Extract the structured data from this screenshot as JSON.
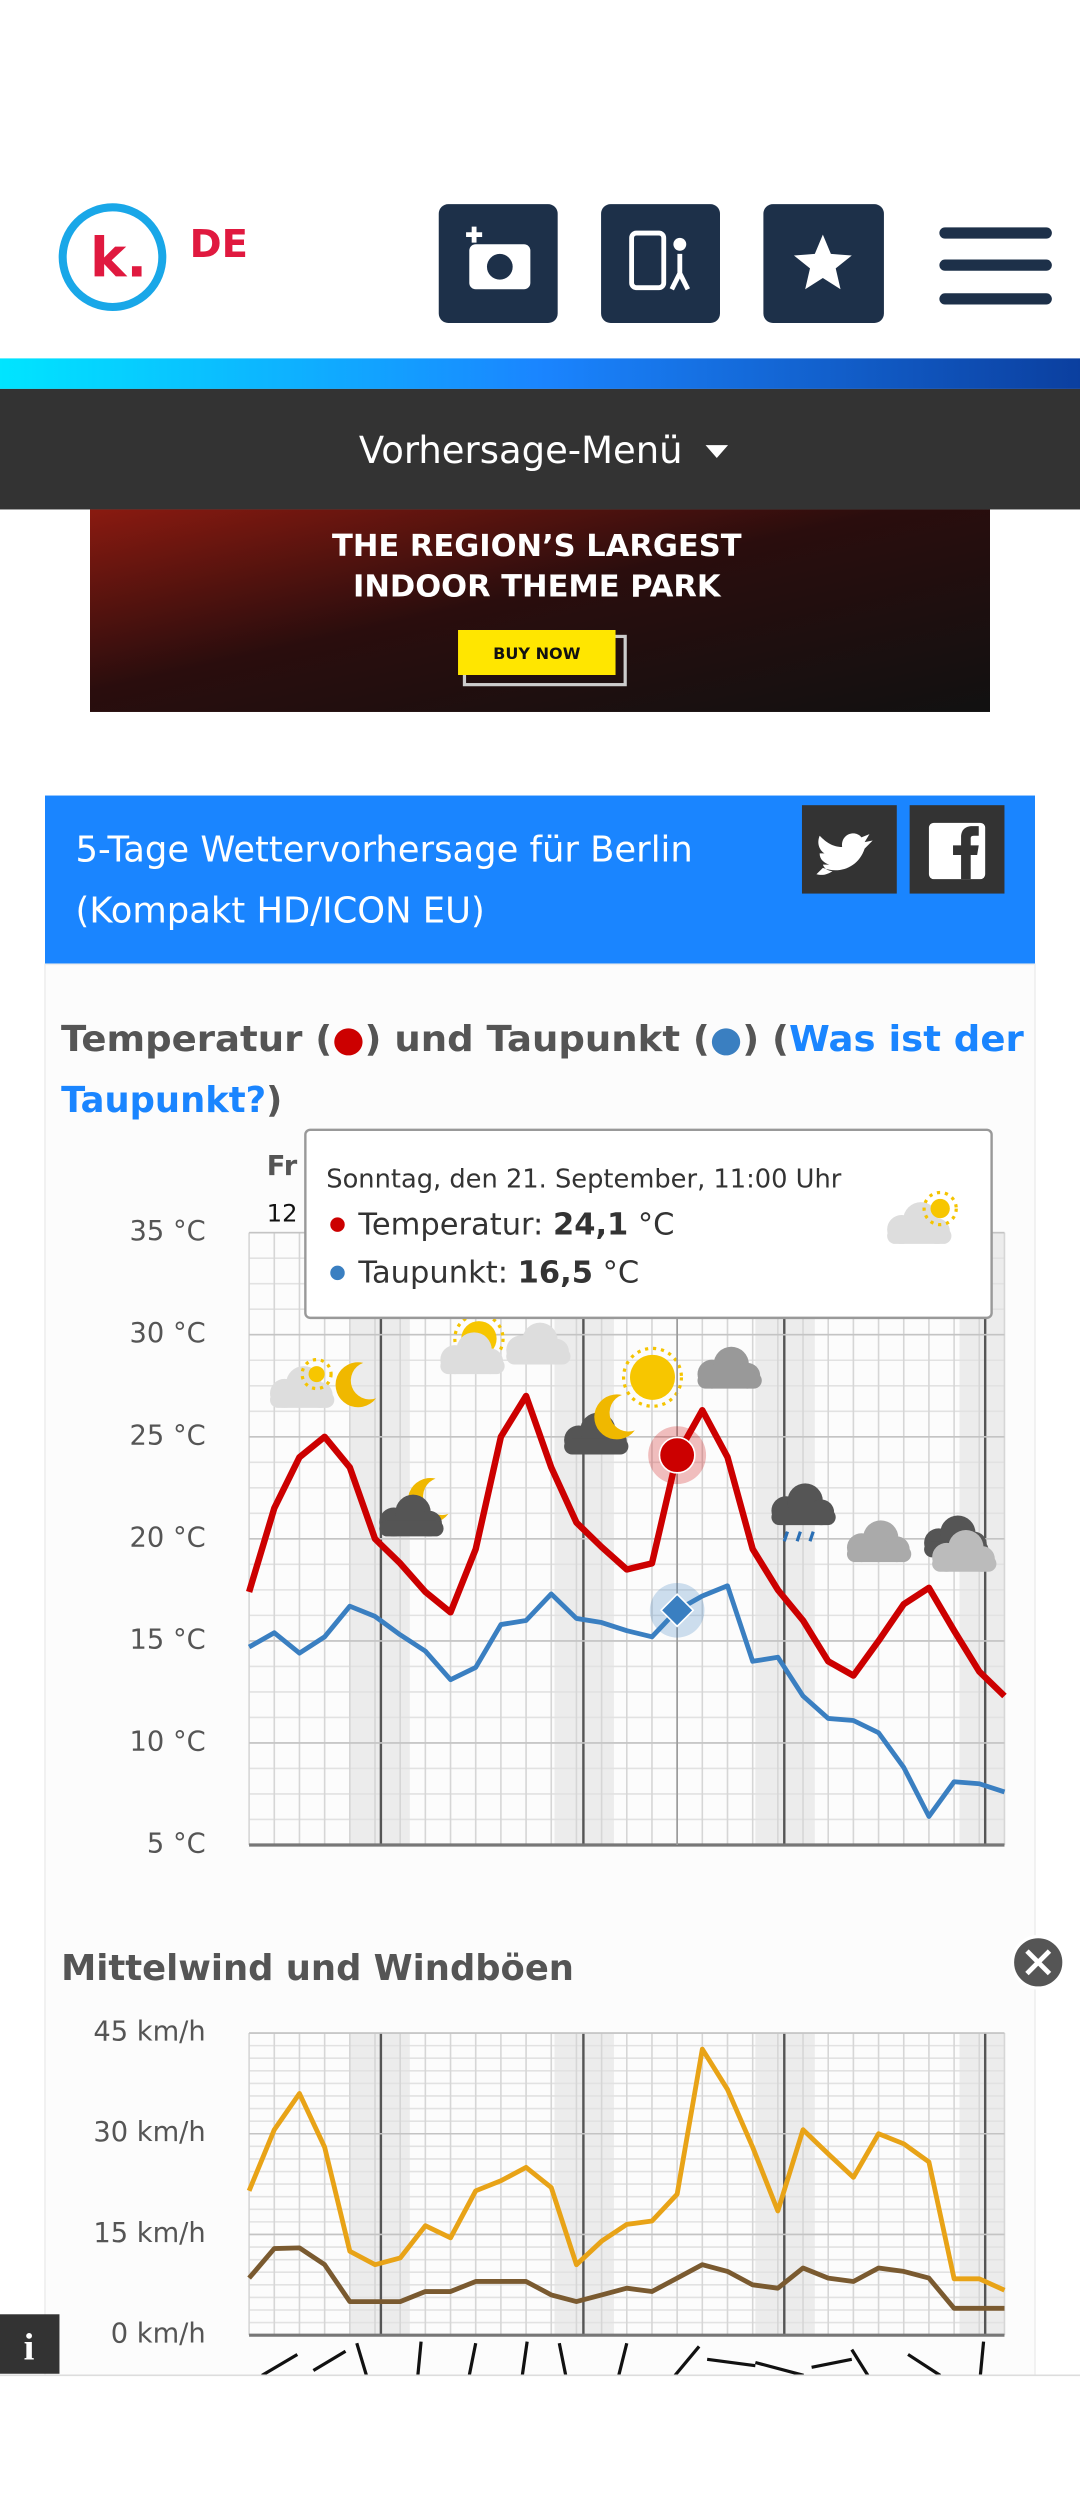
{
  "header": {
    "logo": "k.",
    "locale": "DE"
  },
  "menu": {
    "label": "Vorhersage-Menü"
  },
  "ad": {
    "line1": "THE REGION’S LARGEST",
    "line2": "INDOOR THEME PARK",
    "button": "BUY NOW"
  },
  "forecast": {
    "title_line1": "5-Tage Wettervorhersage für Berlin",
    "title_line2": "(Kompakt HD/ICON EU)"
  },
  "temperature_chart": {
    "type": "line",
    "title_parts": [
      "Temperatur (",
      "●",
      ") und Taupunkt (",
      "●",
      ") (",
      "Was ist der",
      "Taupunkt?",
      ")"
    ],
    "day_label": "Fr",
    "hour_label": "12",
    "categories": [
      null,
      null,
      null,
      null,
      null,
      null,
      null,
      null,
      null,
      null,
      null,
      null,
      null,
      null,
      null,
      null,
      null,
      null,
      null,
      null,
      null,
      null,
      null,
      null,
      null,
      null,
      null,
      null,
      null,
      null,
      null
    ],
    "ylim": [
      5,
      35
    ],
    "yticks": [
      {
        "value": 5,
        "label": "5 °C"
      },
      {
        "value": 10,
        "label": "10 °C"
      },
      {
        "value": 15,
        "label": "15 °C"
      },
      {
        "value": 20,
        "label": "20 °C"
      },
      {
        "value": 25,
        "label": "25 °C"
      },
      {
        "value": 30,
        "label": "30 °C"
      },
      {
        "value": 35,
        "label": "35 °C"
      }
    ],
    "grid": true,
    "series": [
      {
        "color": "#cc0000",
        "values": [
          17.4,
          21.5,
          24.0,
          25.0,
          23.5,
          20.0,
          18.8,
          17.4,
          16.4,
          19.5,
          25.0,
          27.0,
          23.5,
          20.8,
          19.6,
          18.5,
          18.8,
          24.1,
          26.3,
          24.0,
          19.5,
          17.5,
          16.0,
          14.0,
          13.3,
          15.0,
          16.8,
          17.6,
          15.5,
          13.5,
          12.3
        ]
      },
      {
        "color": "#3a7fc1",
        "values": [
          14.7,
          15.4,
          14.4,
          15.2,
          16.7,
          16.2,
          15.3,
          14.5,
          13.1,
          13.7,
          15.8,
          16.0,
          17.3,
          16.1,
          15.9,
          15.5,
          15.2,
          16.5,
          17.2,
          17.7,
          14.0,
          14.2,
          12.3,
          11.2,
          11.1,
          10.5,
          8.8,
          6.4,
          8.1,
          8.0,
          7.6
        ]
      }
    ],
    "tooltip": {
      "date": "Sonntag, den 21. September, 11:00 Uhr",
      "rows": [
        {
          "label": "Temperatur:",
          "value": "24,1",
          "unit": "°C"
        },
        {
          "label": "Taupunkt:",
          "value": "16,5",
          "unit": "°C"
        }
      ]
    }
  },
  "wind_chart": {
    "type": "line",
    "title": "Mittelwind und Windböen",
    "categories": [
      null,
      null,
      null,
      null,
      null,
      null,
      null,
      null,
      null,
      null,
      null,
      null,
      null,
      null,
      null,
      null,
      null,
      null,
      null,
      null,
      null,
      null,
      null,
      null,
      null,
      null,
      null,
      null,
      null,
      null,
      null
    ],
    "ylim": [
      0,
      45
    ],
    "yticks": [
      {
        "value": 0,
        "label": "0 km/h"
      },
      {
        "value": 15,
        "label": "15 km/h"
      },
      {
        "value": 30,
        "label": "30 km/h"
      },
      {
        "value": 45,
        "label": "45 km/h"
      }
    ],
    "grid": true,
    "series": [
      {
        "color": "#e8a317",
        "values": [
          21.5,
          30.6,
          36.0,
          28.0,
          12.5,
          10.5,
          11.5,
          16.3,
          14.5,
          21.5,
          23.0,
          25.0,
          22.0,
          10.5,
          14.0,
          16.5,
          17.0,
          21.0,
          42.6,
          36.6,
          28.0,
          18.5,
          30.6,
          27.0,
          23.5,
          30.0,
          28.5,
          25.8,
          8.4,
          8.4,
          6.7
        ]
      },
      {
        "color": "#7a5a30",
        "values": [
          8.5,
          12.9,
          13.0,
          10.5,
          5.0,
          5.0,
          5.0,
          6.5,
          6.5,
          8.0,
          8.0,
          8.0,
          6.0,
          5.0,
          6.0,
          7.0,
          6.5,
          8.5,
          10.5,
          9.5,
          7.5,
          7.0,
          10.0,
          8.5,
          8.0,
          10.0,
          9.5,
          8.5,
          4.0,
          4.0,
          4.0
        ]
      }
    ]
  },
  "info_button": "i"
}
